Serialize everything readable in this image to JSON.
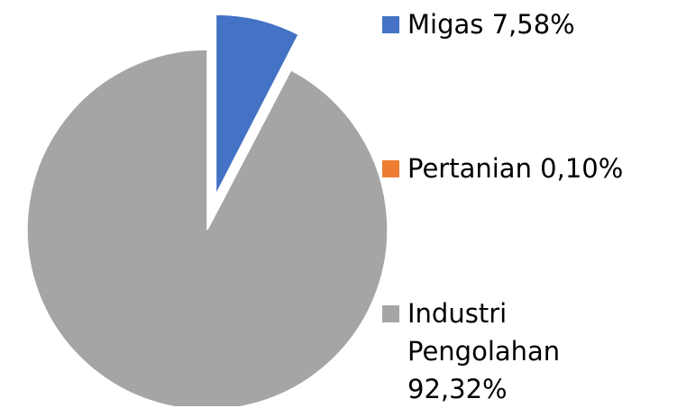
{
  "chart_data": {
    "type": "pie",
    "categories": [
      "Migas",
      "Pertanian",
      "Industri Pengolahan"
    ],
    "values": [
      7.58,
      0.1,
      92.32
    ],
    "value_labels": [
      "7,58%",
      "0,10%",
      "92,32%"
    ],
    "colors": [
      "#4472c4",
      "#ed7d31",
      "#a5a5a5"
    ],
    "exploded": [
      true,
      true,
      false
    ],
    "legend": "right"
  }
}
